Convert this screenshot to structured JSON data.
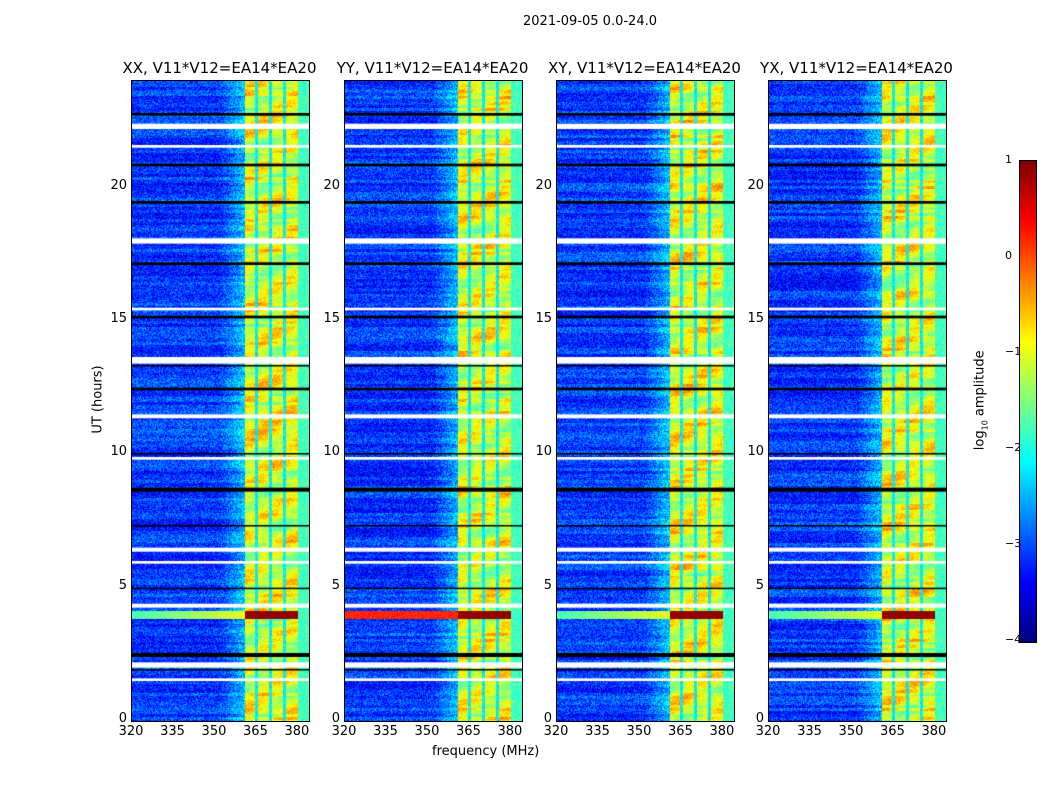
{
  "chart_data": {
    "type": "heatmap",
    "title": "2021-09-05 0.0-24.0",
    "xlabel": "frequency (MHz)",
    "ylabel": "UT (hours)",
    "xlim": [
      320,
      384
    ],
    "ylim": [
      0,
      24
    ],
    "xticks": [
      "320",
      "335",
      "350",
      "365",
      "380"
    ],
    "yticks": [
      "0",
      "5",
      "10",
      "15",
      "20"
    ],
    "panels": [
      {
        "title": "XX, V11*V12=EA14*EA20",
        "rfi_low_freq": false
      },
      {
        "title": "YY, V11*V12=EA14*EA20",
        "rfi_low_freq": true
      },
      {
        "title": "XY, V11*V12=EA14*EA20",
        "rfi_low_freq": false
      },
      {
        "title": "YX, V11*V12=EA14*EA20",
        "rfi_low_freq": false
      }
    ],
    "band_mhz": [
      360.5,
      380
    ],
    "band_gaps_mhz": [
      365,
      370,
      375
    ],
    "rfi_hours": [
      3.85,
      4.15
    ],
    "flagged_white_hours": [
      [
        22.2,
        22.4
      ],
      [
        21.5,
        21.6
      ],
      [
        13.4,
        13.65
      ],
      [
        11.35,
        11.5
      ],
      [
        6.35,
        6.5
      ],
      [
        4.25,
        4.4
      ],
      [
        2.0,
        2.2
      ],
      [
        1.5,
        1.6
      ],
      [
        17.9,
        18.1
      ],
      [
        15.4,
        15.5
      ],
      [
        5.9,
        6.0
      ],
      [
        9.8,
        9.9
      ]
    ],
    "flagged_black_hours": [
      [
        22.7,
        22.8
      ],
      [
        20.8,
        20.9
      ],
      [
        19.4,
        19.5
      ],
      [
        17.1,
        17.2
      ],
      [
        15.1,
        15.2
      ],
      [
        13.3,
        13.35
      ],
      [
        12.4,
        12.5
      ],
      [
        10.0,
        10.05
      ],
      [
        8.6,
        8.75
      ],
      [
        7.3,
        7.35
      ],
      [
        4.95,
        5.0
      ],
      [
        2.4,
        2.55
      ],
      [
        1.9,
        1.95
      ]
    ],
    "colorbar": {
      "label": "log10 amplitude",
      "label_main": "log",
      "label_sub": "10",
      "label_rest": " amplitude",
      "range": [
        -4,
        1
      ],
      "ticks": [
        "1",
        "0",
        "−1",
        "−2",
        "−3",
        "−4"
      ],
      "colormap": "jet"
    }
  }
}
